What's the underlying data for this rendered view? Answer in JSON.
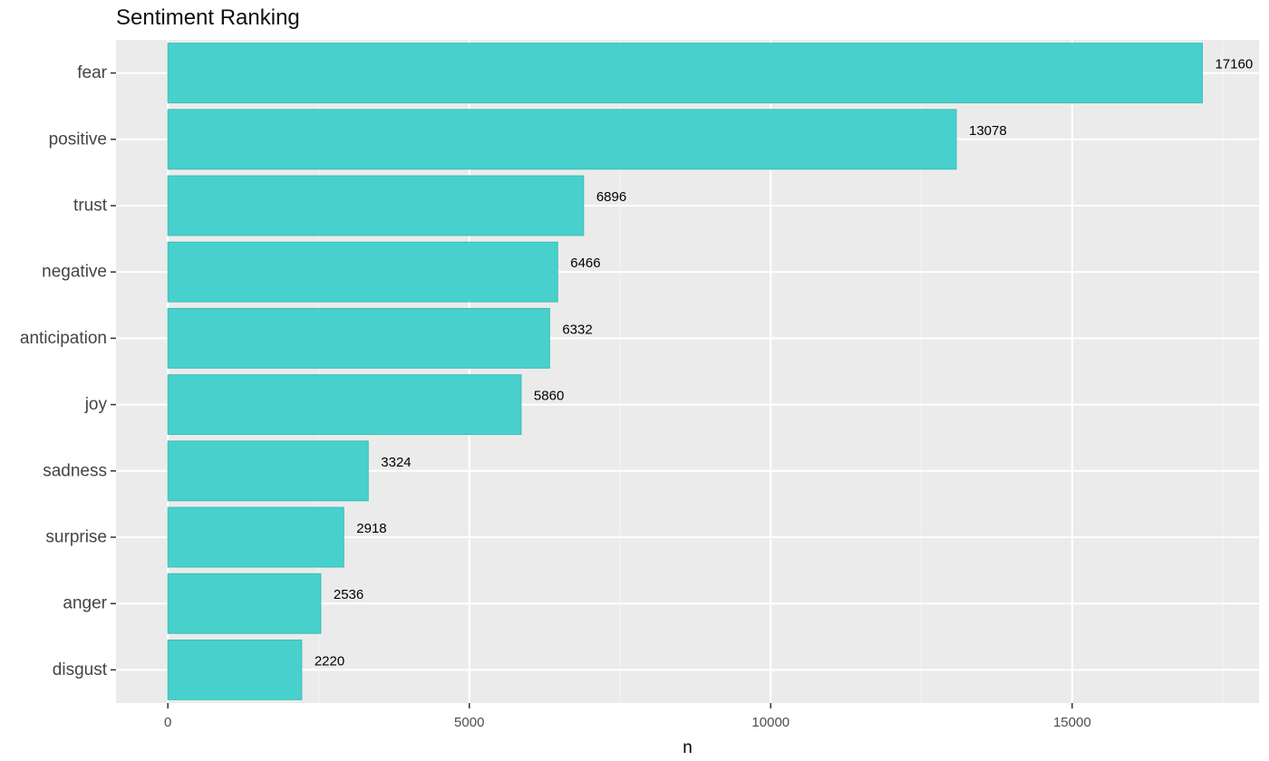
{
  "chart_data": {
    "type": "bar",
    "orientation": "horizontal",
    "title": "Sentiment Ranking",
    "xlabel": "n",
    "ylabel": "",
    "categories": [
      "fear",
      "positive",
      "trust",
      "negative",
      "anticipation",
      "joy",
      "sadness",
      "surprise",
      "anger",
      "disgust"
    ],
    "values": [
      17160,
      13078,
      6896,
      6466,
      6332,
      5860,
      3324,
      2918,
      2536,
      2220
    ],
    "xlim": [
      -860,
      18100
    ],
    "xticks": [
      0,
      5000,
      10000,
      15000
    ],
    "xtick_labels": [
      "0",
      "5000",
      "10000",
      "15000"
    ],
    "grid": true,
    "legend": "none",
    "colors": {
      "bar_fill": "#48d1cc",
      "bar_stroke": "#3cbdb7",
      "panel_bg": "#ebebeb",
      "grid_major": "#ffffff",
      "grid_minor": "#f5f5f5"
    }
  }
}
